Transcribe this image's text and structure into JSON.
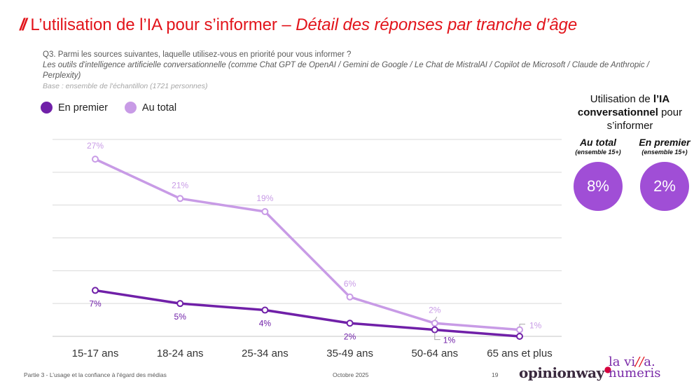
{
  "header": {
    "title_mark": "//",
    "title_main": "L’utilisation de l’IA pour s’informer – ",
    "title_italic": "Détail des réponses par tranche d’âge"
  },
  "question": {
    "text": "Q3. Parmi les sources suivantes, laquelle utilisez-vous en priorité pour vous informer ?",
    "item": "Les outils d'intelligence artificielle conversationnelle (comme Chat GPT de OpenAI / Gemini de Google / Le Chat de MistralAI / Copilot de Microsoft / Claude de Anthropic / Perplexity)",
    "base": "Base : ensemble de l'échantillon (1721 personnes)"
  },
  "colors": {
    "title": "#e2141b",
    "en_premier": "#7020a8",
    "au_total": "#c89be6",
    "bubble": "#a04ed6",
    "grid": "#d9d9d9"
  },
  "chart_data": {
    "type": "line",
    "title": "L’utilisation de l’IA pour s’informer – Détail des réponses par tranche d’âge",
    "xlabel": "",
    "ylabel": "",
    "categories": [
      "15-17 ans",
      "18-24 ans",
      "25-34 ans",
      "35-49 ans",
      "50-64 ans",
      "65 ans et plus"
    ],
    "ylim": [
      0,
      30
    ],
    "grid": true,
    "legend_position": "top-left",
    "unit": "%",
    "series": [
      {
        "name": "En premier",
        "color": "#7020a8",
        "values": [
          7,
          5,
          4,
          2,
          1,
          0
        ],
        "labels": [
          "7%",
          "5%",
          "4%",
          "2%",
          "1%",
          ""
        ],
        "label_position": "below"
      },
      {
        "name": "Au total",
        "color": "#c89be6",
        "values": [
          27,
          21,
          19,
          6,
          2,
          1
        ],
        "labels": [
          "27%",
          "21%",
          "19%",
          "6%",
          "2%",
          "1%"
        ],
        "label_position": "above"
      }
    ]
  },
  "side_panel": {
    "title_pre": "Utilisation de ",
    "title_bold1": "l’IA",
    "title_bold2": "conversationnel",
    "title_post": " pour s’informer",
    "items": [
      {
        "label": "Au total",
        "sub": "(ensemble 15+)",
        "value": "8%"
      },
      {
        "label": "En premier",
        "sub": "(ensemble 15+)",
        "value": "2%"
      }
    ]
  },
  "footer": {
    "section": "Partie 3 - L’usage et la confiance à l'égard des médias",
    "date": "Octobre 2025",
    "page": "19",
    "logo_opinionway": "opinionway",
    "logo_villa_line1a": "la vi",
    "logo_villa_slash": "//",
    "logo_villa_line1b": "a.",
    "logo_villa_line2": "numeris"
  }
}
